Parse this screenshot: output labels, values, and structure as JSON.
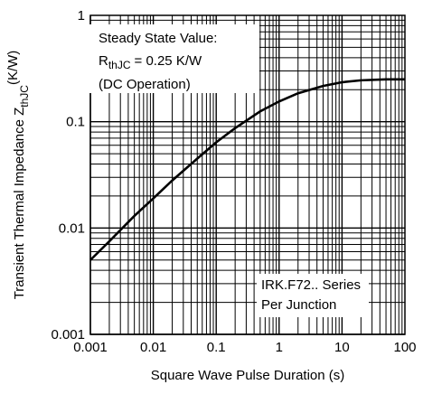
{
  "chart_data": {
    "type": "line",
    "x_scale": "log",
    "y_scale": "log",
    "xlim": [
      0.001,
      100
    ],
    "ylim": [
      0.001,
      1
    ],
    "grid": true,
    "legend": "none",
    "xlabel": "Square Wave Pulse Duration (s)",
    "ylabel": {
      "main": "Transient Thermal Impedance Z",
      "sub": "thJC",
      "unit": "(K/W)"
    },
    "x_ticks": [
      "0.001",
      "0.01",
      "0.1",
      "1",
      "10",
      "100"
    ],
    "y_ticks": [
      "0.001",
      "0.01",
      "0.1",
      "1"
    ],
    "annotations": {
      "steady_state": {
        "line1": "Steady State Value:",
        "line2_main": "R",
        "line2_sub": "thJC",
        "line2_rest": "= 0.25 K/W",
        "line3": "(DC Operation)"
      },
      "series_note": {
        "line1": "IRK.F72.. Series",
        "line2": "Per Junction"
      }
    },
    "series": [
      {
        "x": [
          0.001,
          0.002,
          0.005,
          0.01,
          0.02,
          0.05,
          0.1,
          0.2,
          0.5,
          1,
          2,
          5,
          10,
          20,
          50,
          100
        ],
        "y": [
          0.005,
          0.0075,
          0.013,
          0.019,
          0.028,
          0.045,
          0.064,
          0.087,
          0.125,
          0.155,
          0.185,
          0.217,
          0.235,
          0.245,
          0.25,
          0.25
        ]
      }
    ],
    "colors": {
      "line": "#000000",
      "grid": "#000000",
      "background": "#ffffff"
    }
  }
}
